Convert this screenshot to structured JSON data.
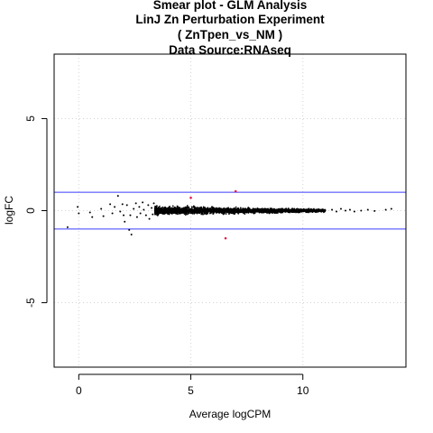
{
  "chart_data": {
    "type": "scatter",
    "title_lines": [
      "Smear plot - GLM Analysis",
      "LinJ Zn Perturbation Experiment",
      "( ZnTpen_vs_NM )",
      "Data Source:RNAseq"
    ],
    "xlabel": "Average logCPM",
    "ylabel": "logFC",
    "xlim": [
      -1.1,
      14.6
    ],
    "ylim": [
      -8.5,
      8.5
    ],
    "x_ticks": [
      0,
      5,
      10
    ],
    "y_ticks": [
      -5,
      0,
      5
    ],
    "grid": true,
    "threshold_lines": [
      1,
      -1
    ],
    "colors": {
      "points": "#000000",
      "highlight": "#e6194b",
      "threshold": "#3b3bff",
      "grid": "#d3d3d3"
    },
    "cloud": {
      "x_start": 3.4,
      "x_end": 11.0,
      "spread_start": 0.2,
      "spread_end": 0.07
    },
    "points": [
      [
        -0.5,
        -0.9
      ],
      [
        -0.05,
        0.2
      ],
      [
        0.0,
        -0.15
      ],
      [
        0.5,
        -0.1
      ],
      [
        0.6,
        -0.35
      ],
      [
        1.0,
        0.1
      ],
      [
        1.1,
        -0.3
      ],
      [
        1.4,
        0.35
      ],
      [
        1.5,
        -0.15
      ],
      [
        1.6,
        0.2
      ],
      [
        1.75,
        0.8
      ],
      [
        1.85,
        -0.05
      ],
      [
        1.95,
        0.35
      ],
      [
        2.0,
        -0.25
      ],
      [
        2.05,
        -0.6
      ],
      [
        2.15,
        0.3
      ],
      [
        2.25,
        -1.05
      ],
      [
        2.3,
        -0.25
      ],
      [
        2.35,
        -1.3
      ],
      [
        2.45,
        0.1
      ],
      [
        2.55,
        0.4
      ],
      [
        2.6,
        -0.35
      ],
      [
        2.7,
        0.2
      ],
      [
        2.75,
        -0.15
      ],
      [
        2.85,
        0.45
      ],
      [
        2.9,
        0.05
      ],
      [
        3.0,
        -0.25
      ],
      [
        3.1,
        0.3
      ],
      [
        3.15,
        -0.45
      ],
      [
        3.25,
        0.15
      ],
      [
        3.3,
        -0.2
      ],
      [
        3.35,
        0.4
      ],
      [
        11.3,
        0.05
      ],
      [
        11.5,
        -0.05
      ],
      [
        11.7,
        0.1
      ],
      [
        11.9,
        0.0
      ],
      [
        12.1,
        0.05
      ],
      [
        12.3,
        -0.05
      ],
      [
        12.6,
        0.0
      ],
      [
        12.9,
        0.05
      ],
      [
        13.2,
        -0.02
      ],
      [
        13.7,
        0.05
      ],
      [
        13.95,
        0.1
      ]
    ],
    "highlight_points": [
      [
        5.0,
        0.7
      ],
      [
        7.0,
        1.05
      ],
      [
        6.55,
        -1.5
      ]
    ]
  }
}
